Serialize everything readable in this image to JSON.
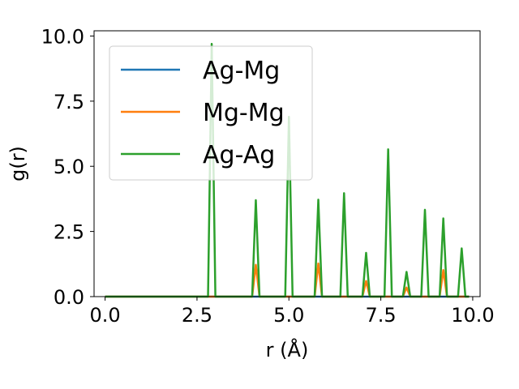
{
  "chart_data": {
    "type": "line",
    "title": "",
    "xlabel": "r (Å)",
    "ylabel": "g(r)",
    "xlim": [
      -0.3,
      10.2
    ],
    "ylim": [
      0,
      10.2
    ],
    "xticks": [
      0.0,
      2.5,
      5.0,
      7.5,
      10.0
    ],
    "xtick_labels": [
      "0.0",
      "2.5",
      "5.0",
      "7.5",
      "10.0"
    ],
    "yticks": [
      0.0,
      2.5,
      5.0,
      7.5,
      10.0
    ],
    "ytick_labels": [
      "0.0",
      "2.5",
      "5.0",
      "7.5",
      "10.0"
    ],
    "grid": false,
    "legend_position": "upper-left",
    "series": [
      {
        "name": "Ag-Mg",
        "color": "#1f77b4",
        "x": [
          0.0,
          9.9
        ],
        "y": [
          0.0,
          0.0
        ]
      },
      {
        "name": "Mg-Mg",
        "color": "#ff7f0e",
        "x": [
          0.0,
          4.0,
          4.1,
          4.2,
          5.7,
          5.8,
          5.9,
          7.0,
          7.1,
          7.2,
          8.1,
          8.2,
          8.3,
          9.1,
          9.2,
          9.3,
          9.9
        ],
        "y": [
          0.0,
          0.0,
          1.22,
          0.0,
          0.0,
          1.27,
          0.0,
          0.0,
          0.6,
          0.0,
          0.0,
          0.35,
          0.0,
          0.0,
          1.02,
          0.0,
          0.0
        ]
      },
      {
        "name": "Ag-Ag",
        "color": "#2ca02c",
        "x": [
          0.0,
          2.8,
          2.9,
          3.0,
          4.0,
          4.1,
          4.2,
          4.9,
          5.0,
          5.1,
          5.7,
          5.8,
          5.9,
          6.4,
          6.5,
          6.6,
          7.0,
          7.1,
          7.2,
          7.6,
          7.7,
          7.8,
          8.1,
          8.2,
          8.3,
          8.6,
          8.7,
          8.8,
          9.1,
          9.2,
          9.3,
          9.6,
          9.7,
          9.8,
          9.9
        ],
        "y": [
          0.0,
          0.0,
          9.7,
          0.0,
          0.0,
          3.7,
          0.0,
          0.0,
          6.9,
          0.0,
          0.0,
          3.72,
          0.0,
          0.0,
          3.97,
          0.0,
          0.0,
          1.68,
          0.0,
          0.0,
          5.65,
          0.0,
          0.0,
          0.95,
          0.0,
          0.0,
          3.33,
          0.0,
          0.0,
          3.0,
          0.0,
          0.0,
          1.85,
          0.0,
          0.0
        ]
      }
    ]
  }
}
